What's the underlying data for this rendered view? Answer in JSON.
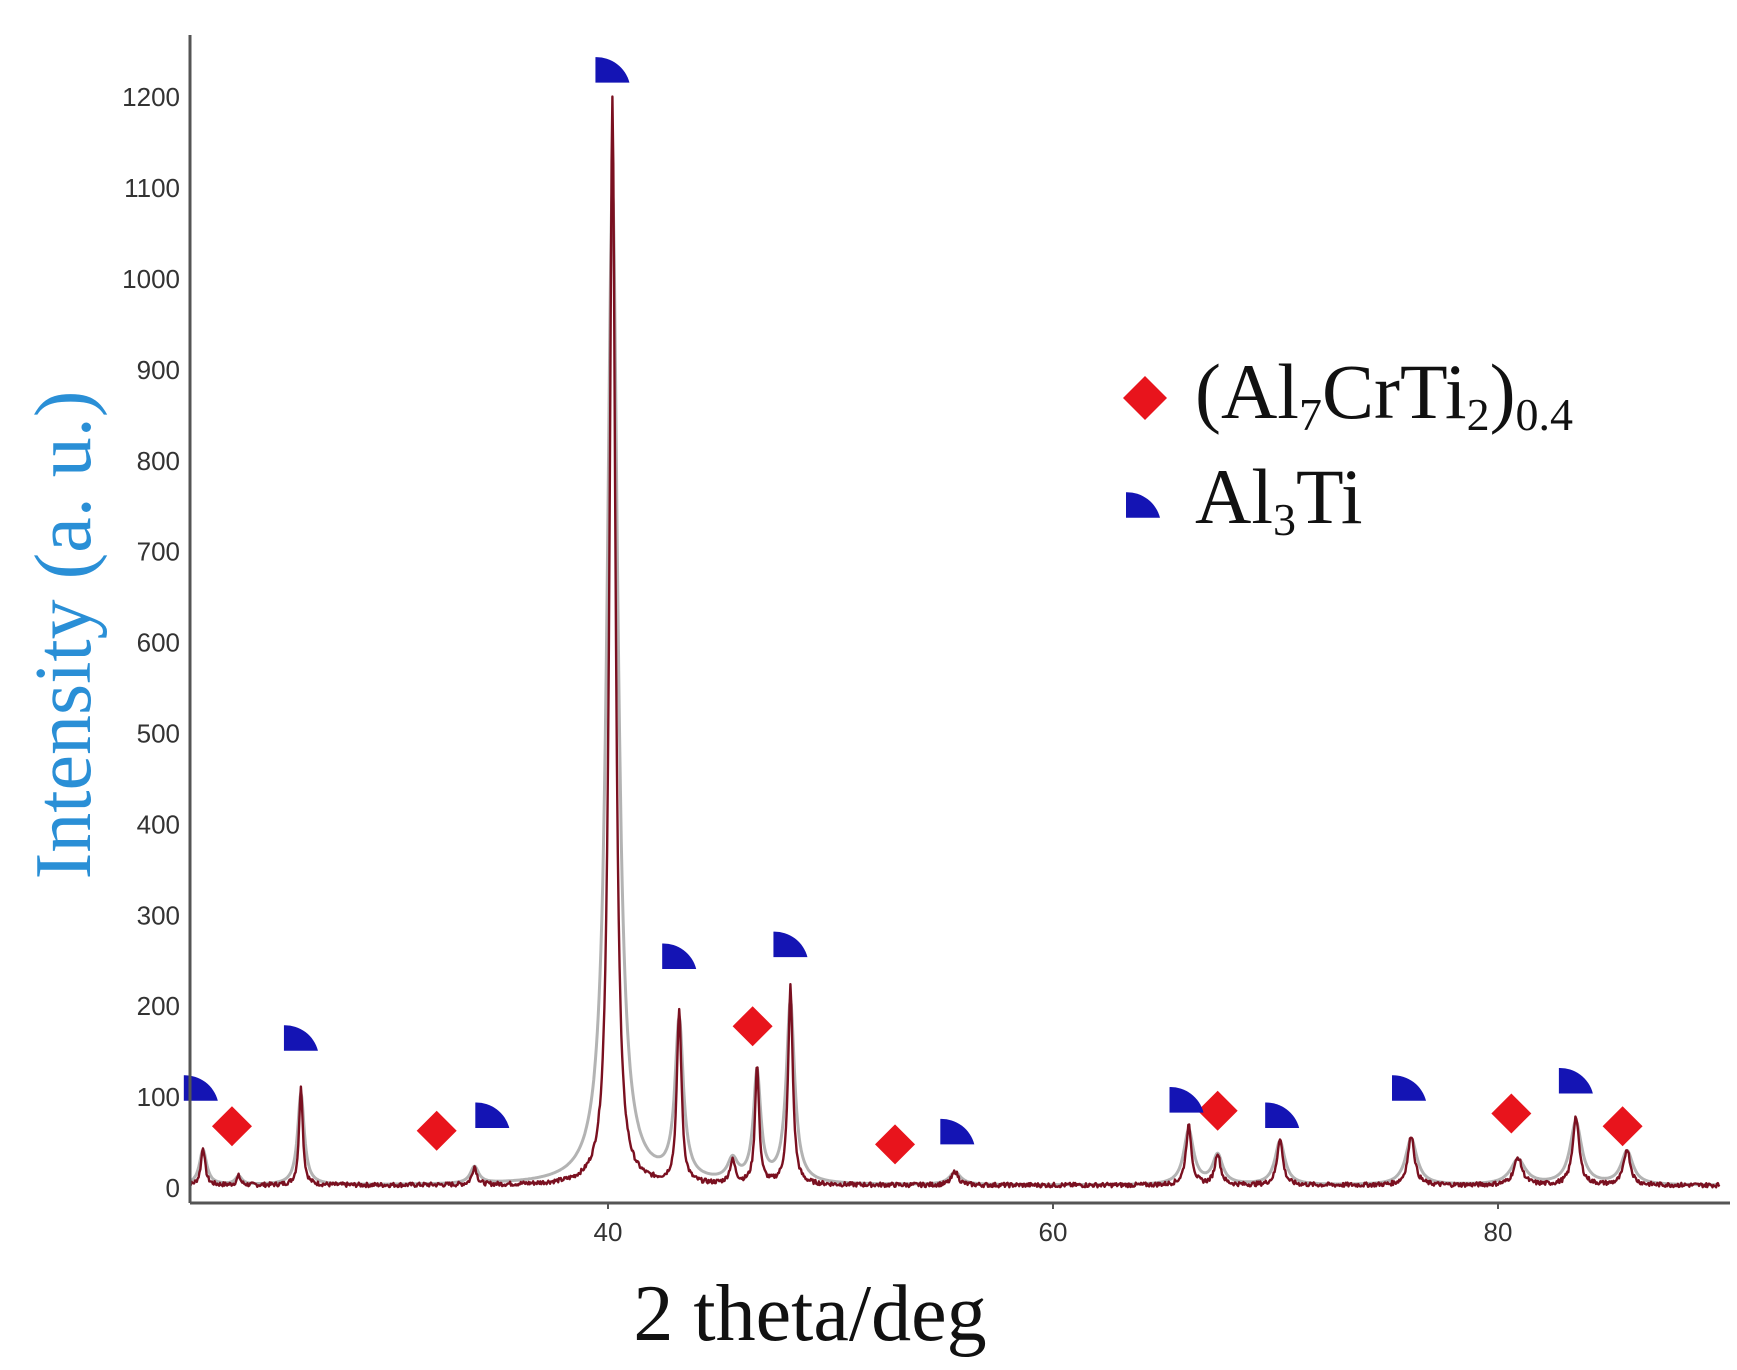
{
  "chart_data": {
    "type": "line",
    "xlabel": "2 theta/deg",
    "ylabel": "Intensity (a. u.)",
    "xlim": [
      21,
      90
    ],
    "ylim": [
      -15,
      1280
    ],
    "x_ticks": [
      40,
      60,
      80
    ],
    "x_tick_labels": [
      "40",
      "60",
      "80"
    ],
    "y_ticks": [
      0,
      100,
      200,
      300,
      400,
      500,
      600,
      700,
      800,
      900,
      1000,
      1100,
      1200
    ],
    "y_tick_labels": [
      "0",
      "100",
      "200",
      "300",
      "400",
      "500",
      "600",
      "700",
      "800",
      "900",
      "1000",
      "1100",
      "1200"
    ],
    "grid": false,
    "legend_position": "top-right",
    "colors": {
      "pattern": "#7a1020",
      "reference": "#9a9a9a",
      "diamond": "#e8141c",
      "quarter_circle": "#1414b4",
      "ylabel": "#2a8fd6",
      "axis": "#555555"
    },
    "baseline": 3,
    "series": [
      {
        "name": "",
        "peaks": [
          {
            "x": 21.8,
            "y": 42,
            "w": 0.22
          },
          {
            "x": 23.4,
            "y": 10,
            "w": 0.2
          },
          {
            "x": 26.2,
            "y": 110,
            "w": 0.2
          },
          {
            "x": 34.0,
            "y": 20,
            "w": 0.25
          },
          {
            "x": 40.2,
            "y": 1195,
            "w": 0.32
          },
          {
            "x": 43.2,
            "y": 190,
            "w": 0.25
          },
          {
            "x": 45.6,
            "y": 25,
            "w": 0.3
          },
          {
            "x": 46.7,
            "y": 130,
            "w": 0.22
          },
          {
            "x": 48.2,
            "y": 218,
            "w": 0.25
          },
          {
            "x": 55.6,
            "y": 15,
            "w": 0.35
          },
          {
            "x": 66.1,
            "y": 65,
            "w": 0.3
          },
          {
            "x": 67.4,
            "y": 35,
            "w": 0.3
          },
          {
            "x": 70.2,
            "y": 52,
            "w": 0.3
          },
          {
            "x": 76.1,
            "y": 55,
            "w": 0.35
          },
          {
            "x": 80.9,
            "y": 30,
            "w": 0.45
          },
          {
            "x": 83.5,
            "y": 75,
            "w": 0.35
          },
          {
            "x": 85.8,
            "y": 40,
            "w": 0.35
          }
        ]
      }
    ],
    "phase_markers": [
      {
        "phase": "Al7CrTi2",
        "symbol": "diamond",
        "x": 23.1,
        "y": 68
      },
      {
        "phase": "Al7CrTi2",
        "symbol": "diamond",
        "x": 32.3,
        "y": 63
      },
      {
        "phase": "Al7CrTi2",
        "symbol": "diamond",
        "x": 46.5,
        "y": 178
      },
      {
        "phase": "Al7CrTi2",
        "symbol": "diamond",
        "x": 52.9,
        "y": 48
      },
      {
        "phase": "Al7CrTi2",
        "symbol": "diamond",
        "x": 67.4,
        "y": 85
      },
      {
        "phase": "Al7CrTi2",
        "symbol": "diamond",
        "x": 80.6,
        "y": 82
      },
      {
        "phase": "Al7CrTi2",
        "symbol": "diamond",
        "x": 85.6,
        "y": 68
      },
      {
        "phase": "Al3Ti",
        "symbol": "quarter-circle",
        "x": 21.7,
        "y": 110
      },
      {
        "phase": "Al3Ti",
        "symbol": "quarter-circle",
        "x": 26.2,
        "y": 165
      },
      {
        "phase": "Al3Ti",
        "symbol": "quarter-circle",
        "x": 34.8,
        "y": 80
      },
      {
        "phase": "Al3Ti",
        "symbol": "quarter-circle",
        "x": 40.2,
        "y": 1230
      },
      {
        "phase": "Al3Ti",
        "symbol": "quarter-circle",
        "x": 43.2,
        "y": 255
      },
      {
        "phase": "Al3Ti",
        "symbol": "quarter-circle",
        "x": 48.2,
        "y": 268
      },
      {
        "phase": "Al3Ti",
        "symbol": "quarter-circle",
        "x": 55.7,
        "y": 62
      },
      {
        "phase": "Al3Ti",
        "symbol": "quarter-circle",
        "x": 66.0,
        "y": 97
      },
      {
        "phase": "Al3Ti",
        "symbol": "quarter-circle",
        "x": 70.3,
        "y": 80
      },
      {
        "phase": "Al3Ti",
        "symbol": "quarter-circle",
        "x": 76.0,
        "y": 110
      },
      {
        "phase": "Al3Ti",
        "symbol": "quarter-circle",
        "x": 83.5,
        "y": 118
      }
    ],
    "legend": [
      {
        "symbol": "diamond",
        "parts": [
          {
            "t": "(Al",
            "sub": false
          },
          {
            "t": "7",
            "sub": true
          },
          {
            "t": "CrTi",
            "sub": false
          },
          {
            "t": "2",
            "sub": true
          },
          {
            "t": ")",
            "sub": false
          },
          {
            "t": "0.4",
            "sub": true
          }
        ]
      },
      {
        "symbol": "quarter-circle",
        "parts": [
          {
            "t": "Al",
            "sub": false
          },
          {
            "t": "3",
            "sub": true
          },
          {
            "t": "Ti",
            "sub": false
          }
        ]
      }
    ]
  }
}
